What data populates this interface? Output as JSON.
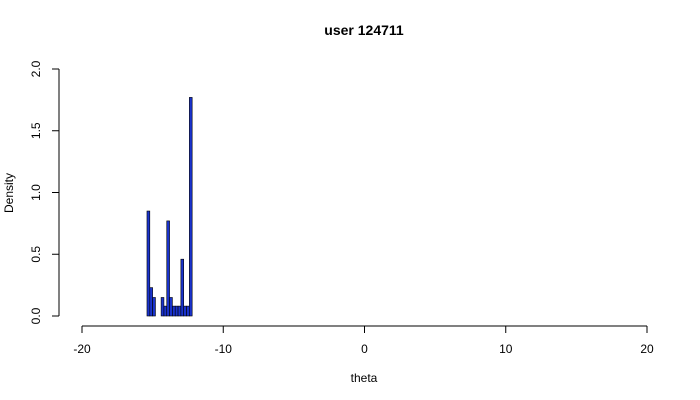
{
  "chart_data": {
    "type": "bar",
    "title": "user 124711",
    "xlabel": "theta",
    "ylabel": "Density",
    "xlim": [
      -20,
      20
    ],
    "ylim": [
      0,
      2.0
    ],
    "x_ticks": [
      "-20",
      "-10",
      "0",
      "10",
      "20"
    ],
    "x_tick_values": [
      -20,
      -10,
      0,
      10,
      20
    ],
    "y_ticks": [
      "0.0",
      "0.5",
      "1.0",
      "1.5",
      "2.0"
    ],
    "y_tick_values": [
      0,
      0.5,
      1.0,
      1.5,
      2.0
    ],
    "bin_width": 0.2,
    "bins": [
      {
        "x0": -15.4,
        "x1": -15.2,
        "density": 0.85
      },
      {
        "x0": -15.2,
        "x1": -15.0,
        "density": 0.23
      },
      {
        "x0": -15.0,
        "x1": -14.8,
        "density": 0.15
      },
      {
        "x0": -14.8,
        "x1": -14.6,
        "density": 0.0
      },
      {
        "x0": -14.6,
        "x1": -14.4,
        "density": 0.0
      },
      {
        "x0": -14.4,
        "x1": -14.2,
        "density": 0.15
      },
      {
        "x0": -14.2,
        "x1": -14.0,
        "density": 0.08
      },
      {
        "x0": -14.0,
        "x1": -13.8,
        "density": 0.77
      },
      {
        "x0": -13.8,
        "x1": -13.6,
        "density": 0.15
      },
      {
        "x0": -13.6,
        "x1": -13.4,
        "density": 0.08
      },
      {
        "x0": -13.4,
        "x1": -13.2,
        "density": 0.08
      },
      {
        "x0": -13.2,
        "x1": -13.0,
        "density": 0.08
      },
      {
        "x0": -13.0,
        "x1": -12.8,
        "density": 0.46
      },
      {
        "x0": -12.8,
        "x1": -12.6,
        "density": 0.08
      },
      {
        "x0": -12.6,
        "x1": -12.4,
        "density": 0.08
      },
      {
        "x0": -12.4,
        "x1": -12.2,
        "density": 1.77
      }
    ],
    "bar_color": "#1a33cc",
    "grid": false,
    "legend": "none"
  }
}
